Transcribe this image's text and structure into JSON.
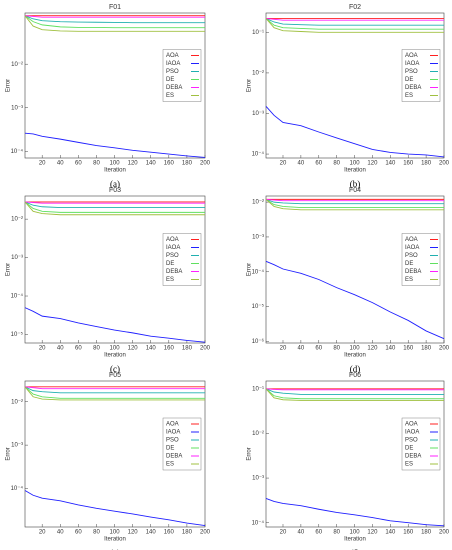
{
  "chart_data": [
    {
      "type": "line",
      "title": "F01",
      "caption": "(a)",
      "xlabel": "Iteration",
      "ylabel": "Error",
      "log_y": true,
      "legend": "right",
      "x": [
        1,
        10,
        20,
        40,
        60,
        80,
        100,
        120,
        140,
        160,
        180,
        200
      ],
      "xlim": [
        1,
        200
      ],
      "xticks": [
        20,
        40,
        60,
        80,
        100,
        120,
        140,
        160,
        180,
        200
      ],
      "ylim": [
        7e-05,
        0.15
      ],
      "yticks": [
        {
          "value": 0.01,
          "label": "10⁻²"
        },
        {
          "value": 0.001,
          "label": "10⁻³"
        },
        {
          "value": 0.0001,
          "label": "10⁻⁴"
        }
      ],
      "series": [
        {
          "name": "AOA",
          "color": "#ff2020",
          "values": [
            0.13,
            0.13,
            0.13,
            0.13,
            0.13,
            0.13,
            0.13,
            0.13,
            0.13,
            0.13,
            0.13,
            0.13
          ]
        },
        {
          "name": "IAOA",
          "color": "#2020ff",
          "values": [
            0.00026,
            0.00025,
            0.00022,
            0.00019,
            0.00016,
            0.000135,
            0.00012,
            0.000105,
            9.5e-05,
            8.6e-05,
            7.8e-05,
            7.2e-05
          ]
        },
        {
          "name": "PSO",
          "color": "#20b0b0",
          "values": [
            0.13,
            0.11,
            0.1,
            0.095,
            0.093,
            0.092,
            0.091,
            0.09,
            0.09,
            0.09,
            0.09,
            0.09
          ]
        },
        {
          "name": "DE",
          "color": "#60e060",
          "values": [
            0.13,
            0.095,
            0.08,
            0.072,
            0.07,
            0.07,
            0.069,
            0.069,
            0.069,
            0.069,
            0.069,
            0.069
          ]
        },
        {
          "name": "DEBA",
          "color": "#ff20ff",
          "values": [
            0.13,
            0.125,
            0.12,
            0.12,
            0.12,
            0.12,
            0.12,
            0.12,
            0.12,
            0.12,
            0.12,
            0.12
          ]
        },
        {
          "name": "ES",
          "color": "#a0c040",
          "values": [
            0.13,
            0.075,
            0.062,
            0.058,
            0.057,
            0.057,
            0.057,
            0.057,
            0.057,
            0.057,
            0.057,
            0.057
          ]
        }
      ]
    },
    {
      "type": "line",
      "title": "F02",
      "caption": "(b)",
      "xlabel": "Iteration",
      "ylabel": "Error",
      "log_y": true,
      "legend": "right",
      "x": [
        1,
        10,
        20,
        40,
        60,
        80,
        100,
        120,
        140,
        160,
        180,
        200
      ],
      "xlim": [
        1,
        200
      ],
      "xticks": [
        20,
        40,
        60,
        80,
        100,
        120,
        140,
        160,
        180,
        200
      ],
      "ylim": [
        8e-05,
        0.3
      ],
      "yticks": [
        {
          "value": 0.1,
          "label": "10⁻¹"
        },
        {
          "value": 0.01,
          "label": "10⁻²"
        },
        {
          "value": 0.001,
          "label": "10⁻³"
        },
        {
          "value": 0.0001,
          "label": "10⁻⁴"
        }
      ],
      "series": [
        {
          "name": "AOA",
          "color": "#ff2020",
          "values": [
            0.22,
            0.22,
            0.22,
            0.22,
            0.22,
            0.22,
            0.22,
            0.22,
            0.22,
            0.22,
            0.22,
            0.22
          ]
        },
        {
          "name": "IAOA",
          "color": "#2020ff",
          "values": [
            0.0015,
            0.0009,
            0.0006,
            0.0005,
            0.00035,
            0.00025,
            0.00018,
            0.00013,
            0.00011,
            0.0001,
            9.5e-05,
            8.5e-05
          ]
        },
        {
          "name": "PSO",
          "color": "#20b0b0",
          "values": [
            0.22,
            0.18,
            0.16,
            0.155,
            0.15,
            0.15,
            0.15,
            0.15,
            0.15,
            0.15,
            0.15,
            0.15
          ]
        },
        {
          "name": "DE",
          "color": "#60e060",
          "values": [
            0.22,
            0.15,
            0.13,
            0.125,
            0.12,
            0.12,
            0.12,
            0.12,
            0.12,
            0.12,
            0.12,
            0.12
          ]
        },
        {
          "name": "DEBA",
          "color": "#ff20ff",
          "values": [
            0.22,
            0.21,
            0.2,
            0.2,
            0.2,
            0.2,
            0.2,
            0.2,
            0.2,
            0.2,
            0.2,
            0.2
          ]
        },
        {
          "name": "ES",
          "color": "#a0c040",
          "values": [
            0.22,
            0.13,
            0.11,
            0.105,
            0.1,
            0.1,
            0.1,
            0.1,
            0.1,
            0.1,
            0.1,
            0.1
          ]
        }
      ]
    },
    {
      "type": "line",
      "title": "F03",
      "caption": "(c)",
      "xlabel": "Iteration",
      "ylabel": "Error",
      "log_y": true,
      "legend": "right",
      "x": [
        1,
        10,
        20,
        40,
        60,
        80,
        100,
        120,
        140,
        160,
        180,
        200
      ],
      "xlim": [
        1,
        200
      ],
      "xticks": [
        20,
        40,
        60,
        80,
        100,
        120,
        140,
        160,
        180,
        200
      ],
      "ylim": [
        6e-06,
        0.04
      ],
      "yticks": [
        {
          "value": 0.01,
          "label": "10⁻²"
        },
        {
          "value": 0.001,
          "label": "10⁻³"
        },
        {
          "value": 0.0001,
          "label": "10⁻⁴"
        },
        {
          "value": 1e-05,
          "label": "10⁻⁵"
        }
      ],
      "series": [
        {
          "name": "AOA",
          "color": "#ff2020",
          "values": [
            0.028,
            0.028,
            0.028,
            0.028,
            0.028,
            0.028,
            0.028,
            0.028,
            0.028,
            0.028,
            0.028,
            0.028
          ]
        },
        {
          "name": "IAOA",
          "color": "#2020ff",
          "values": [
            5e-05,
            4e-05,
            3e-05,
            2.6e-05,
            2e-05,
            1.6e-05,
            1.3e-05,
            1.1e-05,
            9e-06,
            8e-06,
            7e-06,
            6.3e-06
          ]
        },
        {
          "name": "PSO",
          "color": "#20b0b0",
          "values": [
            0.028,
            0.023,
            0.021,
            0.02,
            0.02,
            0.02,
            0.02,
            0.02,
            0.02,
            0.02,
            0.02,
            0.02
          ]
        },
        {
          "name": "DE",
          "color": "#60e060",
          "values": [
            0.028,
            0.019,
            0.016,
            0.015,
            0.015,
            0.015,
            0.015,
            0.015,
            0.015,
            0.015,
            0.015,
            0.015
          ]
        },
        {
          "name": "DEBA",
          "color": "#ff20ff",
          "values": [
            0.028,
            0.027,
            0.026,
            0.026,
            0.026,
            0.026,
            0.026,
            0.026,
            0.026,
            0.026,
            0.026,
            0.026
          ]
        },
        {
          "name": "ES",
          "color": "#a0c040",
          "values": [
            0.028,
            0.016,
            0.014,
            0.013,
            0.013,
            0.013,
            0.013,
            0.013,
            0.013,
            0.013,
            0.013,
            0.013
          ]
        }
      ]
    },
    {
      "type": "line",
      "title": "F04",
      "caption": "(d)",
      "xlabel": "Iteration",
      "ylabel": "Error",
      "log_y": true,
      "legend": "right",
      "x": [
        1,
        10,
        20,
        40,
        60,
        80,
        100,
        120,
        140,
        160,
        180,
        200
      ],
      "xlim": [
        1,
        200
      ],
      "xticks": [
        20,
        40,
        60,
        80,
        100,
        120,
        140,
        160,
        180,
        200
      ],
      "ylim": [
        9e-07,
        0.015
      ],
      "yticks": [
        {
          "value": 0.01,
          "label": "10⁻²"
        },
        {
          "value": 0.001,
          "label": "10⁻³"
        },
        {
          "value": 0.0001,
          "label": "10⁻⁴"
        },
        {
          "value": 1e-05,
          "label": "10⁻⁵"
        },
        {
          "value": 1e-06,
          "label": "10⁻⁶"
        }
      ],
      "series": [
        {
          "name": "AOA",
          "color": "#ff2020",
          "values": [
            0.012,
            0.012,
            0.012,
            0.012,
            0.012,
            0.012,
            0.012,
            0.012,
            0.012,
            0.012,
            0.012,
            0.012
          ]
        },
        {
          "name": "IAOA",
          "color": "#2020ff",
          "values": [
            0.0002,
            0.00016,
            0.00012,
            9e-05,
            6e-05,
            3.5e-05,
            2.2e-05,
            1.3e-05,
            7e-06,
            4e-06,
            2e-06,
            1.2e-06
          ]
        },
        {
          "name": "PSO",
          "color": "#20b0b0",
          "values": [
            0.012,
            0.01,
            0.0095,
            0.009,
            0.009,
            0.009,
            0.009,
            0.009,
            0.009,
            0.009,
            0.009,
            0.009
          ]
        },
        {
          "name": "DE",
          "color": "#60e060",
          "values": [
            0.012,
            0.0085,
            0.0075,
            0.007,
            0.007,
            0.007,
            0.007,
            0.007,
            0.007,
            0.007,
            0.007,
            0.007
          ]
        },
        {
          "name": "DEBA",
          "color": "#ff20ff",
          "values": [
            0.012,
            0.0115,
            0.011,
            0.011,
            0.011,
            0.011,
            0.011,
            0.011,
            0.011,
            0.011,
            0.011,
            0.011
          ]
        },
        {
          "name": "ES",
          "color": "#a0c040",
          "values": [
            0.012,
            0.0075,
            0.0065,
            0.006,
            0.006,
            0.006,
            0.006,
            0.006,
            0.006,
            0.006,
            0.006,
            0.006
          ]
        }
      ]
    },
    {
      "type": "line",
      "title": "F05",
      "caption": "(e)",
      "xlabel": "Iteration",
      "ylabel": "Error",
      "log_y": true,
      "legend": "right",
      "x": [
        1,
        10,
        20,
        40,
        60,
        80,
        100,
        120,
        140,
        160,
        180,
        200
      ],
      "xlim": [
        1,
        200
      ],
      "xticks": [
        20,
        40,
        60,
        80,
        100,
        120,
        140,
        160,
        180,
        200
      ],
      "ylim": [
        1.3e-05,
        0.03
      ],
      "yticks": [
        {
          "value": 0.01,
          "label": "10⁻²"
        },
        {
          "value": 0.001,
          "label": "10⁻³"
        },
        {
          "value": 0.0001,
          "label": "10⁻⁴"
        }
      ],
      "series": [
        {
          "name": "AOA",
          "color": "#ff2020",
          "values": [
            0.022,
            0.022,
            0.022,
            0.022,
            0.022,
            0.022,
            0.022,
            0.022,
            0.022,
            0.022,
            0.022,
            0.022
          ]
        },
        {
          "name": "IAOA",
          "color": "#2020ff",
          "values": [
            9e-05,
            7e-05,
            6e-05,
            5.2e-05,
            4.2e-05,
            3.5e-05,
            3e-05,
            2.6e-05,
            2.2e-05,
            1.9e-05,
            1.6e-05,
            1.4e-05
          ]
        },
        {
          "name": "PSO",
          "color": "#20b0b0",
          "values": [
            0.022,
            0.018,
            0.017,
            0.016,
            0.016,
            0.016,
            0.016,
            0.016,
            0.016,
            0.016,
            0.016,
            0.016
          ]
        },
        {
          "name": "DE",
          "color": "#60e060",
          "values": [
            0.022,
            0.015,
            0.013,
            0.012,
            0.012,
            0.012,
            0.012,
            0.012,
            0.012,
            0.012,
            0.012,
            0.012
          ]
        },
        {
          "name": "DEBA",
          "color": "#ff20ff",
          "values": [
            0.022,
            0.021,
            0.02,
            0.02,
            0.02,
            0.02,
            0.02,
            0.02,
            0.02,
            0.02,
            0.02,
            0.02
          ]
        },
        {
          "name": "ES",
          "color": "#a0c040",
          "values": [
            0.022,
            0.013,
            0.0115,
            0.011,
            0.011,
            0.011,
            0.011,
            0.011,
            0.011,
            0.011,
            0.011,
            0.011
          ]
        }
      ]
    },
    {
      "type": "line",
      "title": "F06",
      "caption": "(f)",
      "xlabel": "Iteration",
      "ylabel": "Error",
      "log_y": true,
      "legend": "right",
      "x": [
        1,
        10,
        20,
        40,
        60,
        80,
        100,
        120,
        140,
        160,
        180,
        200
      ],
      "xlim": [
        1,
        200
      ],
      "xticks": [
        20,
        40,
        60,
        80,
        100,
        120,
        140,
        160,
        180,
        200
      ],
      "ylim": [
        8e-05,
        0.15
      ],
      "yticks": [
        {
          "value": 0.1,
          "label": "10⁻¹"
        },
        {
          "value": 0.01,
          "label": "10⁻²"
        },
        {
          "value": 0.001,
          "label": "10⁻³"
        },
        {
          "value": 0.0001,
          "label": "10⁻⁴"
        }
      ],
      "series": [
        {
          "name": "AOA",
          "color": "#ff2020",
          "values": [
            0.1,
            0.1,
            0.1,
            0.1,
            0.1,
            0.1,
            0.1,
            0.1,
            0.1,
            0.1,
            0.1,
            0.1
          ]
        },
        {
          "name": "IAOA",
          "color": "#2020ff",
          "values": [
            0.00035,
            0.0003,
            0.00027,
            0.00024,
            0.0002,
            0.00017,
            0.00015,
            0.00013,
            0.00011,
            0.0001,
            9e-05,
            8.5e-05
          ]
        },
        {
          "name": "PSO",
          "color": "#20b0b0",
          "values": [
            0.1,
            0.085,
            0.08,
            0.075,
            0.075,
            0.075,
            0.075,
            0.075,
            0.075,
            0.075,
            0.075,
            0.075
          ]
        },
        {
          "name": "DE",
          "color": "#60e060",
          "values": [
            0.1,
            0.07,
            0.063,
            0.06,
            0.06,
            0.06,
            0.06,
            0.06,
            0.06,
            0.06,
            0.06,
            0.06
          ]
        },
        {
          "name": "DEBA",
          "color": "#ff20ff",
          "values": [
            0.1,
            0.097,
            0.095,
            0.095,
            0.095,
            0.095,
            0.095,
            0.095,
            0.095,
            0.095,
            0.095,
            0.095
          ]
        },
        {
          "name": "ES",
          "color": "#a0c040",
          "values": [
            0.1,
            0.063,
            0.057,
            0.055,
            0.055,
            0.055,
            0.055,
            0.055,
            0.055,
            0.055,
            0.055,
            0.055
          ]
        }
      ]
    }
  ]
}
